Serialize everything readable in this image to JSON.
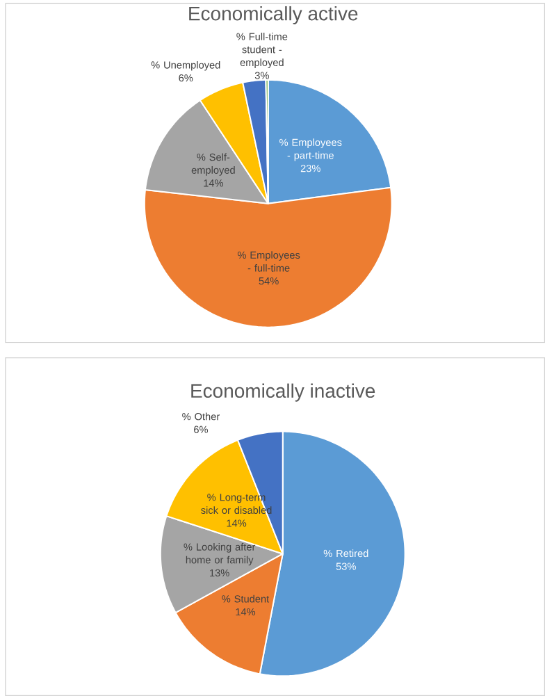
{
  "chart_data": [
    {
      "type": "pie",
      "title": "Economically active",
      "categories": [
        "% Employees - part-time",
        "% Employees - full-time",
        "% Self-employed",
        "% Unemployed",
        "% Full-time student - employed",
        null
      ],
      "values": [
        23,
        54,
        14,
        6,
        3,
        0.3
      ],
      "value_labels": [
        "23%",
        "54%",
        "14%",
        "6%",
        "3%",
        null
      ],
      "colors": [
        "#5b9bd5",
        "#ed7d31",
        "#a5a5a5",
        "#ffc000",
        "#4472c4",
        "#70ad47"
      ]
    },
    {
      "type": "pie",
      "title": "Economically inactive",
      "categories": [
        "% Retired",
        "% Student",
        "% Looking after home or family",
        "% Long-term sick or disabled",
        "% Other"
      ],
      "values": [
        53,
        14,
        13,
        14,
        6
      ],
      "value_labels": [
        "53%",
        "14%",
        "13%",
        "14%",
        "6%"
      ],
      "colors": [
        "#5b9bd5",
        "#ed7d31",
        "#a5a5a5",
        "#ffc000",
        "#4472c4"
      ]
    }
  ]
}
